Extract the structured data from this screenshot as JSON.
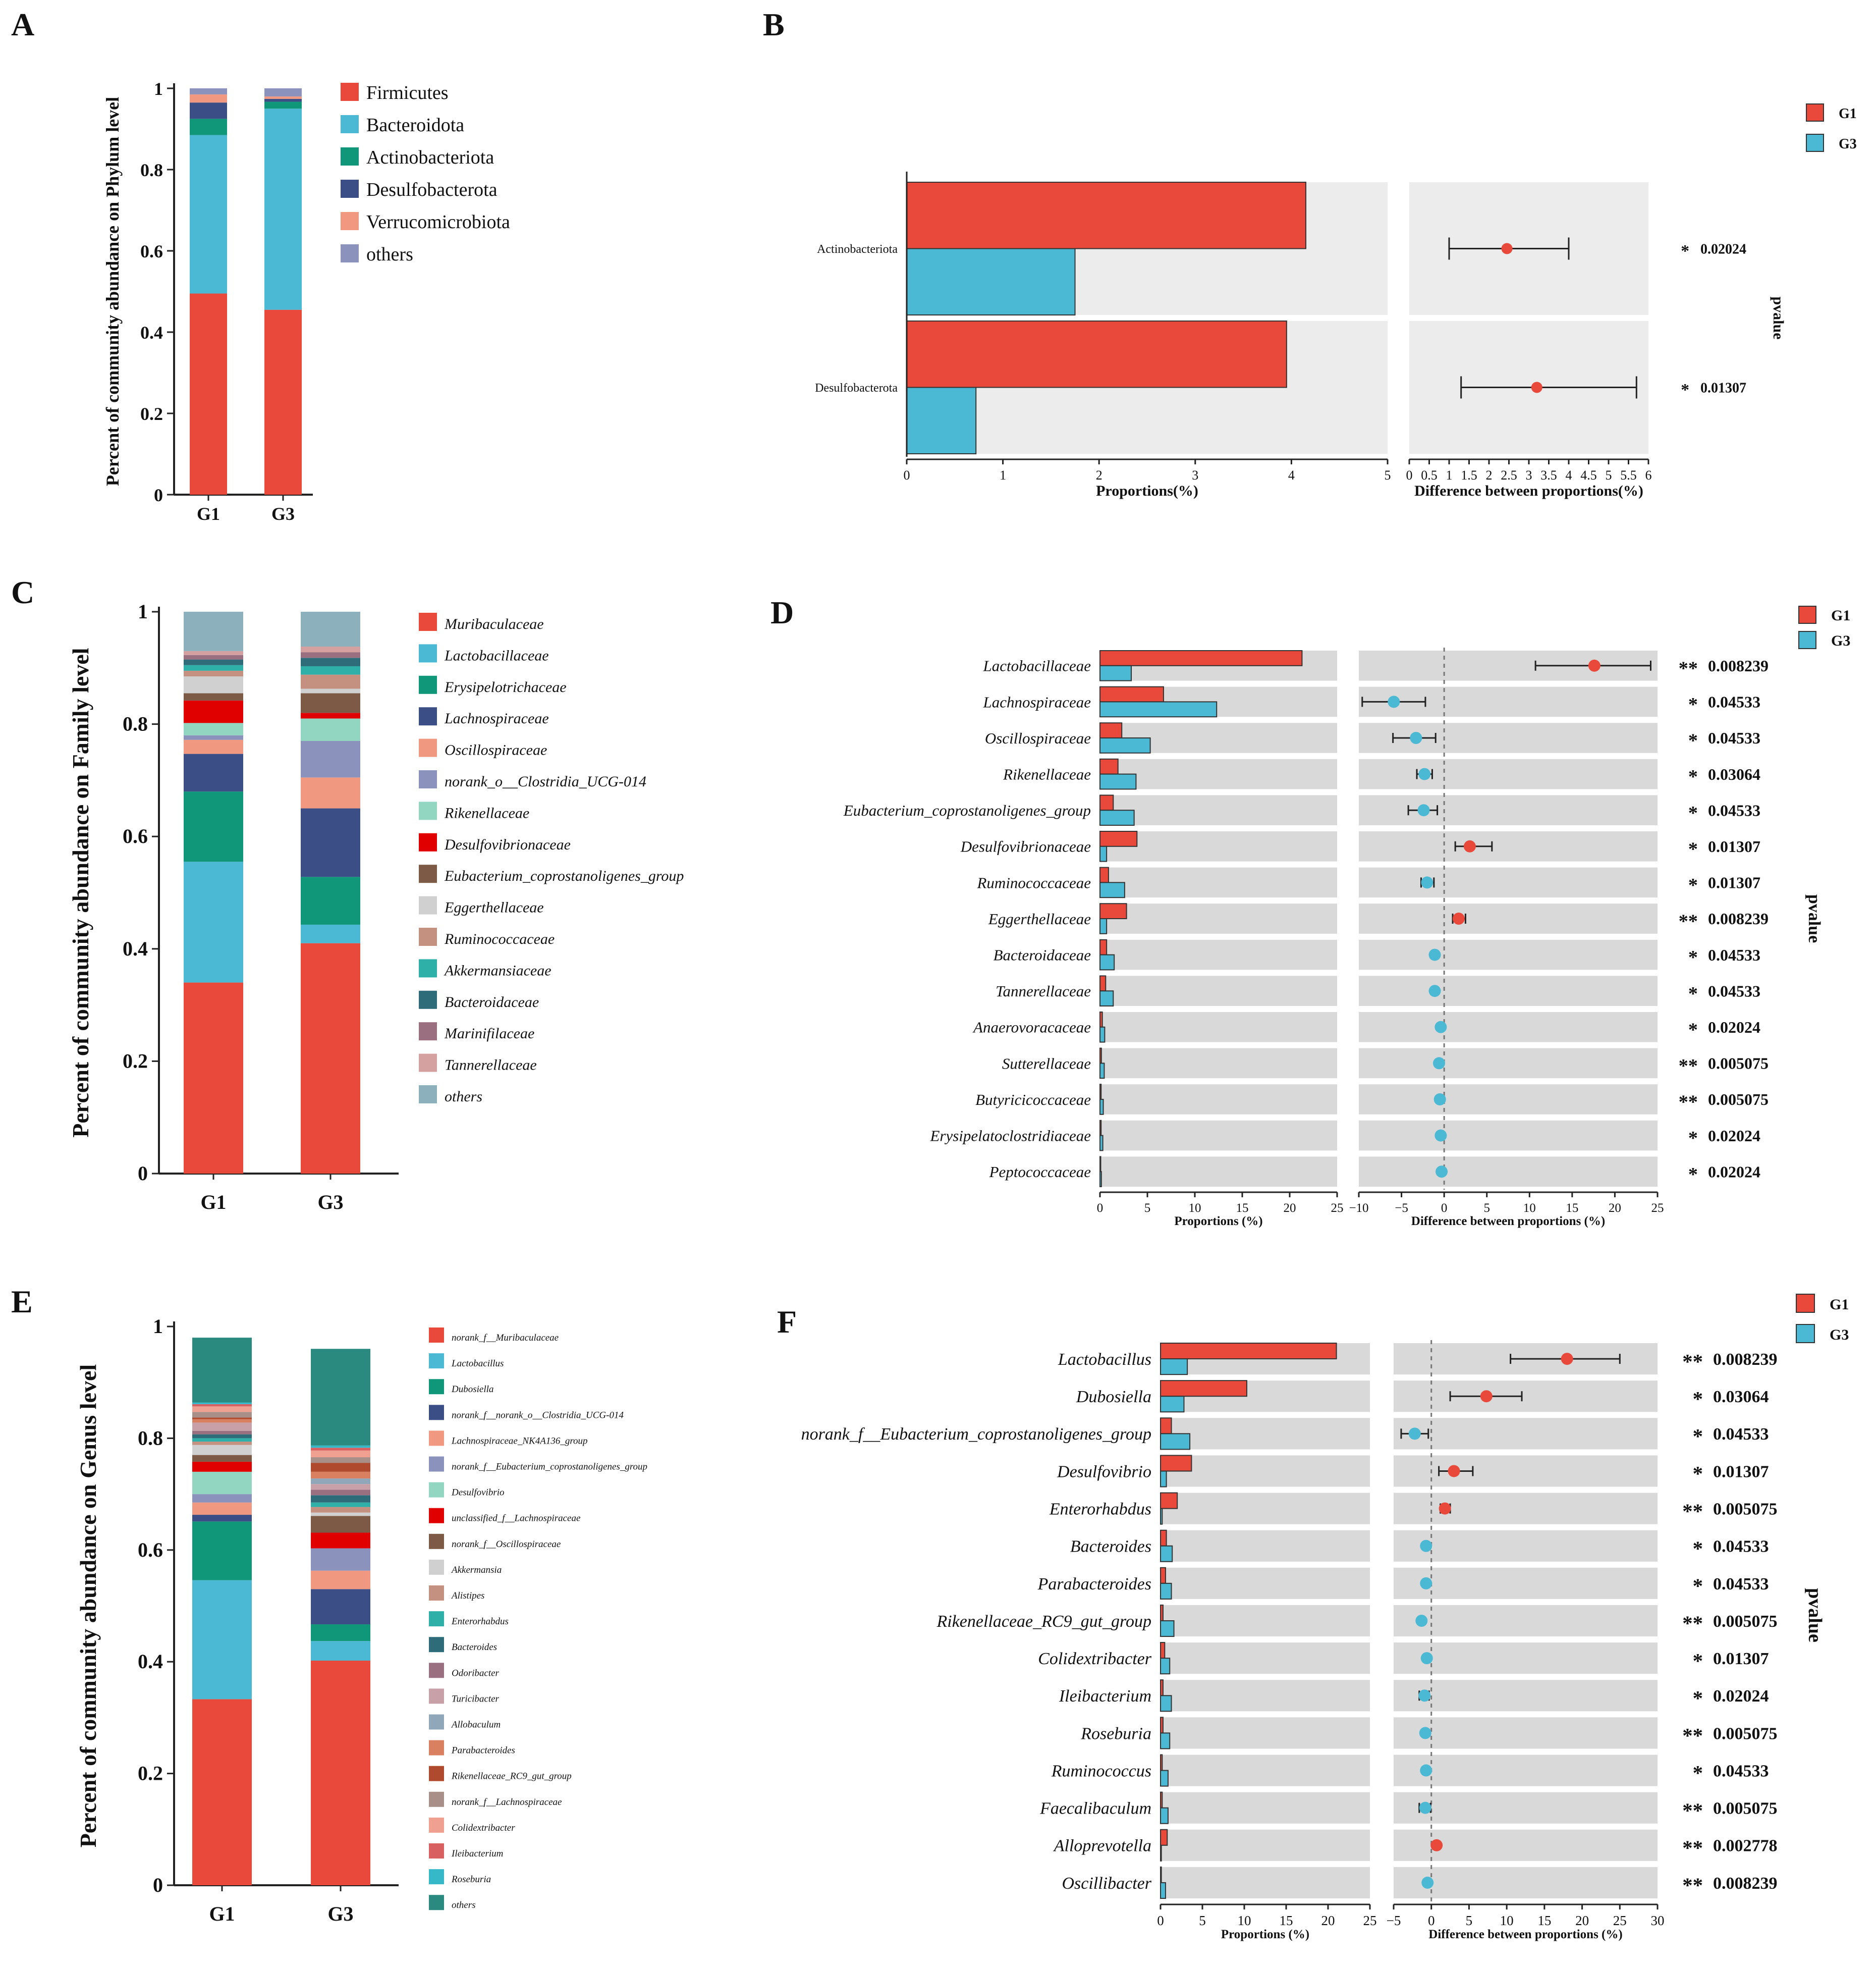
{
  "panel_letters": [
    "A",
    "B",
    "C",
    "D",
    "E",
    "F"
  ],
  "colors": {
    "g1": "#e8493a",
    "g3": "#4bb8d4",
    "band": "#d9d9d9",
    "band_light": "#ececec",
    "sig_star": "#e8403a"
  },
  "chart_data": [
    {
      "panel": "A",
      "type": "bar",
      "stacked": true,
      "ylabel": "Percent of community abundance on Phylum level",
      "ylim": [
        0,
        1
      ],
      "yticks": [
        "0",
        "0.2",
        "0.4",
        "0.6",
        "0.8",
        "1"
      ],
      "categories": [
        "G1",
        "G3"
      ],
      "series": [
        {
          "name": "Firmicutes",
          "color": "#e8493a",
          "values": [
            0.495,
            0.455
          ]
        },
        {
          "name": "Bacteroidota",
          "color": "#4bb8d4",
          "values": [
            0.39,
            0.495
          ]
        },
        {
          "name": "Actinobacteriota",
          "color": "#10977a",
          "values": [
            0.04,
            0.017
          ]
        },
        {
          "name": "Desulfobacterota",
          "color": "#3b4e86",
          "values": [
            0.04,
            0.007
          ]
        },
        {
          "name": "Verrucomicrobiota",
          "color": "#f09880",
          "values": [
            0.02,
            0.006
          ]
        },
        {
          "name": "others",
          "color": "#8b93bd",
          "values": [
            0.015,
            0.02
          ]
        }
      ]
    },
    {
      "panel": "B",
      "type": "bar",
      "subtype": "stamp",
      "legend": [
        "G1",
        "G3"
      ],
      "categories": [
        "Actinobacteriota",
        "Desulfobacterota"
      ],
      "g1": [
        4.15,
        3.95
      ],
      "g3": [
        1.75,
        0.72
      ],
      "diff": [
        2.45,
        3.2
      ],
      "ci_low": [
        1.0,
        1.3
      ],
      "ci_high": [
        4.0,
        5.7
      ],
      "pvalues": [
        "0.02024",
        "0.01307"
      ],
      "stars": [
        "*",
        "*"
      ],
      "prop_xlim": [
        0,
        5
      ],
      "prop_ticks": [
        "0",
        "1",
        "2",
        "3",
        "4",
        "5"
      ],
      "diff_xlim": [
        0,
        6
      ],
      "diff_ticks": [
        "0",
        "0.5",
        "1",
        "1.5",
        "2",
        "2.5",
        "3",
        "3.5",
        "4",
        "4.5",
        "5",
        "5.5",
        "6"
      ],
      "xlabel_prop": "Proportions(%)",
      "xlabel_diff": "Difference between proportions(%)",
      "pvalue_label": "pvalue"
    },
    {
      "panel": "C",
      "type": "bar",
      "stacked": true,
      "ylabel": "Percent of community abundance on Family level",
      "ylim": [
        0,
        1
      ],
      "yticks": [
        "0",
        "0.2",
        "0.4",
        "0.6",
        "0.8",
        "1"
      ],
      "categories": [
        "G1",
        "G3"
      ],
      "series": [
        {
          "name": "Muribaculaceae",
          "color": "#e8493a",
          "values": [
            0.34,
            0.41
          ]
        },
        {
          "name": "Lactobacillaceae",
          "color": "#4bb8d4",
          "values": [
            0.215,
            0.033
          ]
        },
        {
          "name": "Erysipelotrichaceae",
          "color": "#10977a",
          "values": [
            0.125,
            0.085
          ]
        },
        {
          "name": "Lachnospiraceae",
          "color": "#3b4e86",
          "values": [
            0.067,
            0.122
          ]
        },
        {
          "name": "Oscillospiraceae",
          "color": "#f09880",
          "values": [
            0.025,
            0.055
          ]
        },
        {
          "name": "norank_o__Clostridia_UCG-014",
          "color": "#8b93bd",
          "values": [
            0.008,
            0.065
          ]
        },
        {
          "name": "Rikenellaceae",
          "color": "#92d5c0",
          "values": [
            0.022,
            0.04
          ]
        },
        {
          "name": "Desulfovibrionaceae",
          "color": "#e00000",
          "values": [
            0.04,
            0.01
          ]
        },
        {
          "name": "Eubacterium_coprostanoligenes_group",
          "color": "#7c5a45",
          "values": [
            0.013,
            0.035
          ]
        },
        {
          "name": "Eggerthellaceae",
          "color": "#d0d0d0",
          "values": [
            0.03,
            0.008
          ]
        },
        {
          "name": "Ruminococcaceae",
          "color": "#c49080",
          "values": [
            0.01,
            0.025
          ]
        },
        {
          "name": "Akkermansiaceae",
          "color": "#2eb0a8",
          "values": [
            0.01,
            0.015
          ]
        },
        {
          "name": "Bacteroidaceae",
          "color": "#2f6c7a",
          "values": [
            0.01,
            0.015
          ]
        },
        {
          "name": "Marinifilaceae",
          "color": "#9a6f80",
          "values": [
            0.008,
            0.01
          ]
        },
        {
          "name": "Tannerellaceae",
          "color": "#d4a0a0",
          "values": [
            0.007,
            0.01
          ]
        },
        {
          "name": "others",
          "color": "#8db0bd",
          "values": [
            0.07,
            0.062
          ]
        }
      ]
    },
    {
      "panel": "D",
      "type": "bar",
      "subtype": "stamp",
      "legend": [
        "G1",
        "G3"
      ],
      "categories": [
        "Lactobacillaceae",
        "Lachnospiraceae",
        "Oscillospiraceae",
        "Rikenellaceae",
        "Eubacterium_coprostanoligenes_group",
        "Desulfovibrionaceae",
        "Ruminococcaceae",
        "Eggerthellaceae",
        "Bacteroidaceae",
        "Tannerellaceae",
        "Anaerovoracaceae",
        "Sutterellaceae",
        "Butyricicoccaceae",
        "Erysipelatoclostridiaceae",
        "Peptococcaceae"
      ],
      "g1": [
        21.3,
        6.7,
        2.3,
        1.9,
        1.4,
        3.9,
        0.9,
        2.8,
        0.7,
        0.6,
        0.25,
        0.15,
        0.12,
        0.12,
        0.08
      ],
      "g3": [
        3.3,
        12.3,
        5.3,
        3.8,
        3.6,
        0.7,
        2.6,
        0.7,
        1.5,
        1.4,
        0.5,
        0.45,
        0.35,
        0.3,
        0.15
      ],
      "diff": [
        17.6,
        -5.9,
        -3.3,
        -2.3,
        -2.4,
        3.0,
        -2.0,
        1.7,
        -1.1,
        -1.1,
        -0.4,
        -0.6,
        -0.5,
        -0.4,
        -0.3
      ],
      "ci_low": [
        10.7,
        -9.6,
        -6.0,
        -3.2,
        -4.2,
        1.3,
        -2.7,
        1.0,
        -1.1,
        -1.1,
        -0.4,
        -0.6,
        -0.5,
        -0.4,
        -0.3
      ],
      "ci_high": [
        24.2,
        -2.2,
        -1.0,
        -1.4,
        -0.8,
        5.6,
        -1.2,
        2.5,
        -1.1,
        -1.1,
        -0.4,
        -0.6,
        -0.5,
        -0.4,
        -0.3
      ],
      "pvalues": [
        "0.008239",
        "0.04533",
        "0.04533",
        "0.03064",
        "0.04533",
        "0.01307",
        "0.01307",
        "0.008239",
        "0.04533",
        "0.04533",
        "0.02024",
        "0.005075",
        "0.005075",
        "0.02024",
        "0.02024"
      ],
      "stars": [
        "**",
        "*",
        "*",
        "*",
        "*",
        "*",
        "*",
        "**",
        "*",
        "*",
        "*",
        "**",
        "**",
        "*",
        "*"
      ],
      "prop_xlim": [
        0,
        25
      ],
      "prop_ticks": [
        "0",
        "5",
        "10",
        "15",
        "20",
        "25"
      ],
      "diff_xlim": [
        -10,
        25
      ],
      "diff_ticks": [
        "−10",
        "−5",
        "0",
        "5",
        "10",
        "15",
        "20",
        "25"
      ],
      "xlabel_prop": "Proportions (%)",
      "xlabel_diff": "Difference between proportions (%)",
      "pvalue_label": "pvalue"
    },
    {
      "panel": "E",
      "type": "bar",
      "stacked": true,
      "ylabel": "Percent of community abundance on Genus level",
      "ylim": [
        0,
        1
      ],
      "yticks": [
        "0",
        "0.2",
        "0.4",
        "0.6",
        "0.8",
        "1"
      ],
      "categories": [
        "G1",
        "G3"
      ],
      "series": [
        {
          "name": "norank_f__Muribaculaceae",
          "color": "#e8493a",
          "values": [
            0.333,
            0.402
          ]
        },
        {
          "name": "Lactobacillus",
          "color": "#4bb8d4",
          "values": [
            0.213,
            0.035
          ]
        },
        {
          "name": "Dubosiella",
          "color": "#10977a",
          "values": [
            0.105,
            0.03
          ]
        },
        {
          "name": "norank_f__norank_o__Clostridia_UCG-014",
          "color": "#3b4e86",
          "values": [
            0.012,
            0.063
          ]
        },
        {
          "name": "Lachnospiraceae_NK4A136_group",
          "color": "#f09880",
          "values": [
            0.022,
            0.033
          ]
        },
        {
          "name": "norank_f__Eubacterium_coprostanoligenes_group",
          "color": "#8b93bd",
          "values": [
            0.015,
            0.04
          ]
        },
        {
          "name": "Desulfovibrio",
          "color": "#92d5c0",
          "values": [
            0.04,
            0.0
          ]
        },
        {
          "name": "unclassified_f__Lachnospiraceae",
          "color": "#e00000",
          "values": [
            0.018,
            0.028
          ]
        },
        {
          "name": "norank_f__Oscillospiraceae",
          "color": "#7c5a45",
          "values": [
            0.012,
            0.03
          ]
        },
        {
          "name": "Akkermansia",
          "color": "#d0d0d0",
          "values": [
            0.018,
            0.006
          ]
        },
        {
          "name": "Alistipes",
          "color": "#c49080",
          "values": [
            0.006,
            0.01
          ]
        },
        {
          "name": "Enterorhabdus",
          "color": "#2eb0a8",
          "values": [
            0.006,
            0.008
          ]
        },
        {
          "name": "Bacteroides",
          "color": "#2f6c7a",
          "values": [
            0.007,
            0.013
          ]
        },
        {
          "name": "Odoribacter",
          "color": "#9a6f80",
          "values": [
            0.006,
            0.01
          ]
        },
        {
          "name": "Turicibacter",
          "color": "#c8a0a8",
          "values": [
            0.015,
            0.01
          ]
        },
        {
          "name": "Allobaculum",
          "color": "#8fa7b8",
          "values": [
            0.0,
            0.01
          ]
        },
        {
          "name": "Parabacteroides",
          "color": "#d88060",
          "values": [
            0.006,
            0.012
          ]
        },
        {
          "name": "Rikenellaceae_RC9_gut_group",
          "color": "#b04a2e",
          "values": [
            0.003,
            0.016
          ]
        },
        {
          "name": "norank_f__Lachnospiraceae",
          "color": "#a89088",
          "values": [
            0.01,
            0.01
          ]
        },
        {
          "name": "Colidextribacter",
          "color": "#f0a090",
          "values": [
            0.01,
            0.012
          ]
        },
        {
          "name": "Ileibacterium",
          "color": "#d86060",
          "values": [
            0.004,
            0.005
          ]
        },
        {
          "name": "Roseburia",
          "color": "#36b8c8",
          "values": [
            0.003,
            0.004
          ]
        },
        {
          "name": "others",
          "color": "#2a8a80",
          "values": [
            0.116,
            0.173
          ]
        }
      ]
    },
    {
      "panel": "F",
      "type": "bar",
      "subtype": "stamp",
      "legend": [
        "G1",
        "G3"
      ],
      "categories": [
        "Lactobacillus",
        "Dubosiella",
        "norank_f__Eubacterium_coprostanoligenes_group",
        "Desulfovibrio",
        "Enterorhabdus",
        "Bacteroides",
        "Parabacteroides",
        "Rikenellaceae_RC9_gut_group",
        "Colidextribacter",
        "Ileibacterium",
        "Roseburia",
        "Ruminococcus",
        "Faecalibaculum",
        "Alloprevotella",
        "Oscillibacter"
      ],
      "g1": [
        21.0,
        10.3,
        1.3,
        3.7,
        2.0,
        0.7,
        0.6,
        0.3,
        0.5,
        0.3,
        0.3,
        0.2,
        0.2,
        0.8,
        0.1
      ],
      "g3": [
        3.2,
        2.8,
        3.5,
        0.7,
        0.2,
        1.4,
        1.3,
        1.6,
        1.1,
        1.3,
        1.1,
        0.9,
        0.9,
        0.1,
        0.6
      ],
      "diff": [
        18.0,
        7.3,
        -2.2,
        3.0,
        1.8,
        -0.7,
        -0.7,
        -1.3,
        -0.6,
        -0.9,
        -0.8,
        -0.7,
        -0.8,
        0.7,
        -0.5
      ],
      "ci_low": [
        10.5,
        2.5,
        -4.0,
        1.0,
        1.2,
        -0.7,
        -0.7,
        -1.3,
        -0.6,
        -1.6,
        -0.8,
        -0.7,
        -1.6,
        0.7,
        -0.5
      ],
      "ci_high": [
        25.0,
        12.0,
        -0.4,
        5.5,
        2.5,
        -0.7,
        -0.7,
        -1.3,
        -0.6,
        -0.3,
        -0.8,
        -0.7,
        -0.1,
        0.7,
        -0.5
      ],
      "pvalues": [
        "0.008239",
        "0.03064",
        "0.04533",
        "0.01307",
        "0.005075",
        "0.04533",
        "0.04533",
        "0.005075",
        "0.01307",
        "0.02024",
        "0.005075",
        "0.04533",
        "0.005075",
        "0.002778",
        "0.008239"
      ],
      "stars": [
        "**",
        "*",
        "*",
        "*",
        "**",
        "*",
        "*",
        "**",
        "*",
        "*",
        "**",
        "*",
        "**",
        "**",
        "**"
      ],
      "prop_xlim": [
        0,
        25
      ],
      "prop_ticks": [
        "0",
        "5",
        "10",
        "15",
        "20",
        "25"
      ],
      "diff_xlim": [
        -5,
        30
      ],
      "diff_ticks": [
        "−5",
        "0",
        "5",
        "10",
        "15",
        "20",
        "25",
        "30"
      ],
      "xlabel_prop": "Proportions (%)",
      "xlabel_diff": "Difference between proportions (%)",
      "pvalue_label": "pvalue"
    }
  ]
}
